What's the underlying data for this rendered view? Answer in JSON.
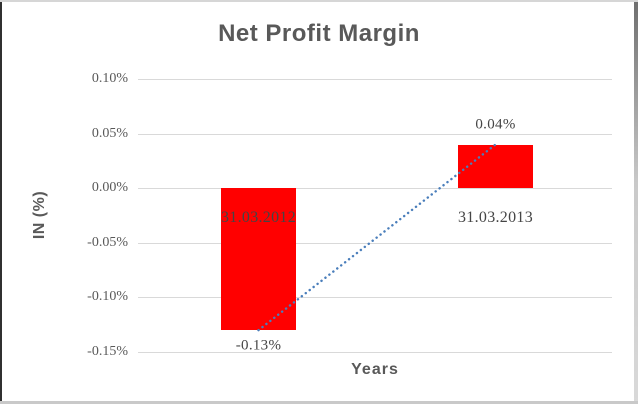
{
  "chart_data": {
    "type": "bar",
    "title": "Net Profit Margin",
    "xlabel": "Years",
    "ylabel": "IN (%)",
    "categories": [
      "31.03.2012",
      "31.03.2013"
    ],
    "series": [
      {
        "name": "Net Profit Margin",
        "values": [
          -0.13,
          0.04
        ]
      }
    ],
    "data_labels": [
      "-0.13%",
      "0.04%"
    ],
    "ylim": [
      -0.15,
      0.1
    ],
    "ytick_values": [
      0.1,
      0.05,
      0.0,
      -0.05,
      -0.1,
      -0.15
    ],
    "ytick_labels": [
      "0.10%",
      "0.05%",
      "0.00%",
      "-0.05%",
      "-0.10%",
      "-0.15%"
    ],
    "grid": true,
    "legend": "none",
    "bar_color": "#ff0000",
    "trendline": {
      "type": "linear",
      "style": "dotted",
      "color": "#4a7ebb"
    }
  },
  "colors": {
    "title_text": "#595959",
    "axis_text": "#595959",
    "label_text": "#454545",
    "gridline": "#d9d9d9",
    "bar": "#ff0000",
    "trendline": "#4a7ebb",
    "background": "#ffffff"
  }
}
